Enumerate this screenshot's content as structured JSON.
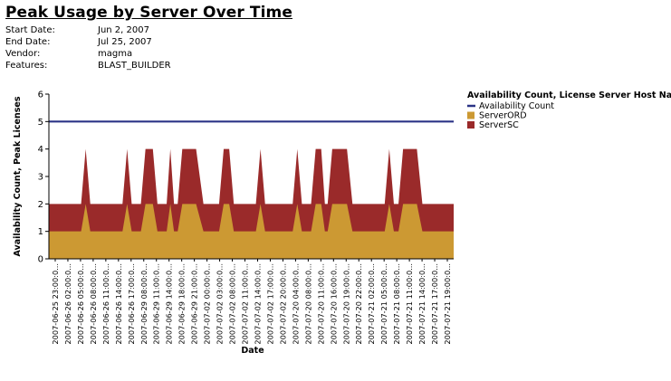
{
  "report": {
    "title": "Peak Usage by Server Over Time",
    "fields": [
      {
        "label": "Start Date:",
        "value": "Jun 2, 2007"
      },
      {
        "label": "End Date:",
        "value": "Jul 25, 2007"
      },
      {
        "label": "Vendor:",
        "value": "magma"
      },
      {
        "label": "Features:",
        "value": "BLAST_BUILDER"
      }
    ]
  },
  "chart_data": {
    "type": "area",
    "stacked": true,
    "xlabel": "Date",
    "ylabel": "Availability Count, Peak Licenses",
    "ylim": [
      0,
      6
    ],
    "yticks": [
      "0",
      "1",
      "2",
      "3",
      "4",
      "5",
      "6"
    ],
    "grid": false,
    "legend": {
      "title": "Availability Count, License Server Host Name",
      "position": "right",
      "entries": [
        {
          "name": "Availability Count",
          "color": "#2b3486",
          "kind": "line"
        },
        {
          "name": "ServerORD",
          "color": "#cc9933",
          "kind": "area"
        },
        {
          "name": "ServerSC",
          "color": "#9a2a2a",
          "kind": "area"
        }
      ]
    },
    "x_tick_labels": [
      "2007-06-25 23:00:0...",
      "2007-06-26 02:00:0...",
      "2007-06-26 05:00:0...",
      "2007-06-26 08:00:0...",
      "2007-06-26 11:00:0...",
      "2007-06-26 14:00:0...",
      "2007-06-26 17:00:0...",
      "2007-06-29 08:00:0...",
      "2007-06-29 11:00:0...",
      "2007-06-29 14:00:0...",
      "2007-06-29 18:00:0...",
      "2007-06-29 21:00:0...",
      "2007-07-02 00:00:0...",
      "2007-07-02 03:00:0...",
      "2007-07-02 08:00:0...",
      "2007-07-02 11:00:0...",
      "2007-07-02 14:00:0...",
      "2007-07-02 17:00:0...",
      "2007-07-02 20:00:0...",
      "2007-07-20 04:00:0...",
      "2007-07-20 08:00:0...",
      "2007-07-20 11:00:0...",
      "2007-07-20 16:00:0...",
      "2007-07-20 19:00:0...",
      "2007-07-20 22:00:0...",
      "2007-07-21 02:00:0...",
      "2007-07-21 05:00:0...",
      "2007-07-21 08:00:0...",
      "2007-07-21 11:00:0...",
      "2007-07-21 14:00:0...",
      "2007-07-21 17:00:0...",
      "2007-07-21 19:00:0..."
    ],
    "x_domain": [
      0,
      44
    ],
    "series": [
      {
        "name": "Availability Count",
        "type": "line",
        "points": [
          [
            0,
            5
          ],
          [
            44,
            5
          ]
        ]
      },
      {
        "name": "ServerORD",
        "type": "area",
        "points": [
          [
            0,
            1
          ],
          [
            3.5,
            1
          ],
          [
            4,
            2
          ],
          [
            4.5,
            1
          ],
          [
            8,
            1
          ],
          [
            8.5,
            2
          ],
          [
            9,
            1
          ],
          [
            10,
            1
          ],
          [
            10.5,
            2
          ],
          [
            11.3,
            2
          ],
          [
            11.8,
            1
          ],
          [
            12.8,
            1
          ],
          [
            13.2,
            2
          ],
          [
            13.6,
            1
          ],
          [
            14,
            1
          ],
          [
            14.5,
            2
          ],
          [
            16,
            2
          ],
          [
            16.8,
            1
          ],
          [
            18.5,
            1
          ],
          [
            19,
            2
          ],
          [
            19.6,
            2
          ],
          [
            20.1,
            1
          ],
          [
            22.5,
            1
          ],
          [
            23,
            2
          ],
          [
            23.5,
            1
          ],
          [
            26.5,
            1
          ],
          [
            27,
            2
          ],
          [
            27.5,
            1
          ],
          [
            28.5,
            1
          ],
          [
            29,
            2
          ],
          [
            29.6,
            2
          ],
          [
            30,
            1
          ],
          [
            30.3,
            1
          ],
          [
            30.8,
            2
          ],
          [
            32.4,
            2
          ],
          [
            33,
            1
          ],
          [
            36.5,
            1
          ],
          [
            37,
            2
          ],
          [
            37.5,
            1
          ],
          [
            38,
            1
          ],
          [
            38.5,
            2
          ],
          [
            40,
            2
          ],
          [
            40.6,
            1
          ],
          [
            44,
            1
          ]
        ]
      },
      {
        "name": "ServerSC",
        "type": "area",
        "points": [
          [
            0,
            1
          ],
          [
            3.5,
            1
          ],
          [
            4,
            2
          ],
          [
            4.5,
            1
          ],
          [
            8,
            1
          ],
          [
            8.5,
            2
          ],
          [
            9,
            1
          ],
          [
            10,
            1
          ],
          [
            10.5,
            2
          ],
          [
            11.3,
            2
          ],
          [
            11.8,
            1
          ],
          [
            12.8,
            1
          ],
          [
            13.2,
            2
          ],
          [
            13.6,
            1
          ],
          [
            14,
            1
          ],
          [
            14.5,
            2
          ],
          [
            16,
            2
          ],
          [
            16.8,
            1
          ],
          [
            18.5,
            1
          ],
          [
            19,
            2
          ],
          [
            19.6,
            2
          ],
          [
            20.1,
            1
          ],
          [
            22.5,
            1
          ],
          [
            23,
            2
          ],
          [
            23.5,
            1
          ],
          [
            26.5,
            1
          ],
          [
            27,
            2
          ],
          [
            27.5,
            1
          ],
          [
            28.5,
            1
          ],
          [
            29,
            2
          ],
          [
            29.6,
            2
          ],
          [
            30,
            1
          ],
          [
            30.3,
            1
          ],
          [
            30.8,
            2
          ],
          [
            32.4,
            2
          ],
          [
            33,
            1
          ],
          [
            36.5,
            1
          ],
          [
            37,
            2
          ],
          [
            37.5,
            1
          ],
          [
            38,
            1
          ],
          [
            38.5,
            2
          ],
          [
            40,
            2
          ],
          [
            40.6,
            1
          ],
          [
            44,
            1
          ]
        ]
      }
    ]
  }
}
